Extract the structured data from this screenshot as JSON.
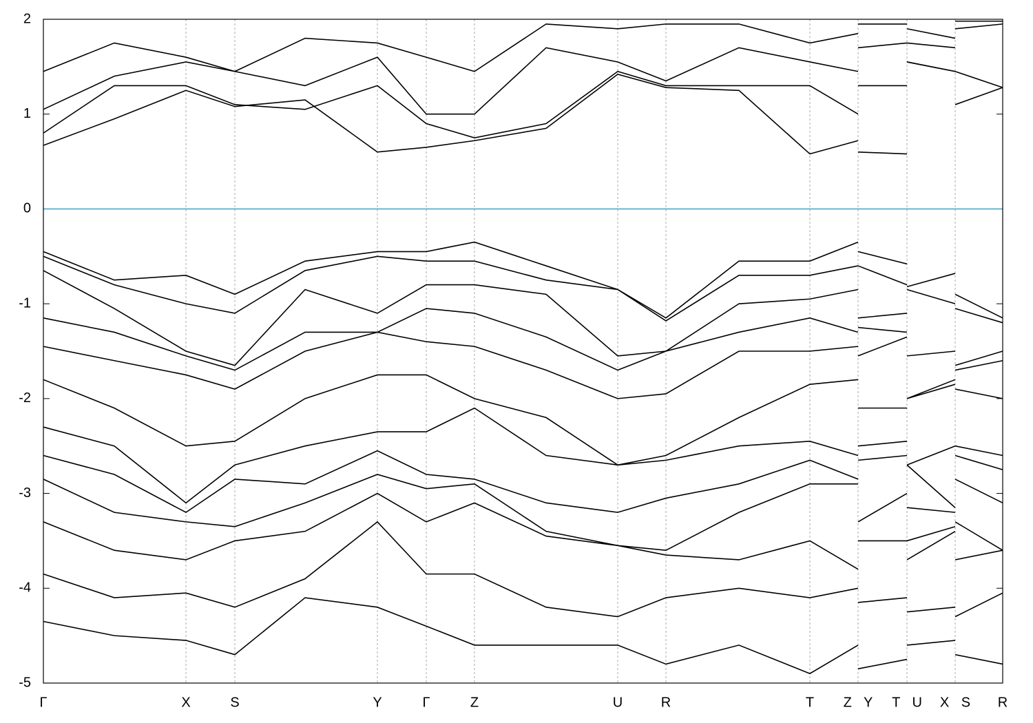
{
  "chart_data": {
    "type": "line",
    "color": "#000000",
    "fermi_level": 0,
    "fermi_color": "#4aa8c8",
    "grid": true,
    "xlim": [
      0,
      13.93
    ],
    "ylim": [
      -5,
      2
    ],
    "yticks": [
      -5,
      -4,
      -3,
      -2,
      -1,
      0,
      1,
      2
    ],
    "xticks": [
      {
        "value": 0,
        "label": "Γ"
      },
      {
        "value": 2.07,
        "label": "X"
      },
      {
        "value": 2.78,
        "label": "S"
      },
      {
        "value": 4.85,
        "label": "Y"
      },
      {
        "value": 5.56,
        "label": "Γ"
      },
      {
        "value": 6.26,
        "label": "Z"
      },
      {
        "value": 8.34,
        "label": "U"
      },
      {
        "value": 9.04,
        "label": "R"
      },
      {
        "value": 11.13,
        "label": "T"
      },
      {
        "value": 11.83,
        "label": "Z Y"
      },
      {
        "value": 12.54,
        "label": "T U"
      },
      {
        "value": 13.24,
        "label": "X S"
      },
      {
        "value": 13.93,
        "label": "R"
      }
    ],
    "x": [
      0,
      1.03,
      2.07,
      2.78,
      3.8,
      4.85,
      5.56,
      6.26,
      7.3,
      8.34,
      9.04,
      10.1,
      11.13,
      11.83,
      11.83,
      11.83,
      12.54,
      12.54,
      12.54,
      13.24,
      13.24,
      13.24,
      13.93
    ],
    "series": [
      {
        "values": [
          0.67,
          0.95,
          1.25,
          1.08,
          1.15,
          0.6,
          0.65,
          0.72,
          0.85,
          1.42,
          1.28,
          1.25,
          0.58,
          0.72,
          null,
          0.6,
          0.58,
          null,
          1.55,
          1.45,
          null,
          1.1,
          1.28
        ]
      },
      {
        "values": [
          0.8,
          1.3,
          1.3,
          1.1,
          1.05,
          1.3,
          0.9,
          0.75,
          0.9,
          1.45,
          1.3,
          1.3,
          1.3,
          1.0,
          null,
          1.3,
          1.3,
          null,
          1.55,
          1.45,
          null,
          1.45,
          1.28
        ]
      },
      {
        "values": [
          1.05,
          1.4,
          1.55,
          1.45,
          1.3,
          1.6,
          1.0,
          1.0,
          1.7,
          1.55,
          1.35,
          1.7,
          1.55,
          1.45,
          null,
          1.7,
          1.75,
          null,
          1.75,
          1.7,
          null,
          1.9,
          1.95
        ]
      },
      {
        "values": [
          1.45,
          1.75,
          1.6,
          1.45,
          1.8,
          1.75,
          1.6,
          1.45,
          1.95,
          1.9,
          1.95,
          1.95,
          1.75,
          1.85,
          null,
          1.95,
          1.95,
          null,
          1.9,
          1.8,
          null,
          1.98,
          1.98
        ]
      },
      {
        "values": [
          -0.45,
          -0.75,
          -0.7,
          -0.9,
          -0.55,
          -0.45,
          -0.45,
          -0.35,
          -0.6,
          -0.85,
          -1.15,
          -0.55,
          -0.55,
          -0.35,
          null,
          -0.45,
          -0.58,
          null,
          -0.82,
          -0.68,
          null,
          -0.9,
          -1.15
        ]
      },
      {
        "values": [
          -0.5,
          -0.8,
          -1.0,
          -1.1,
          -0.65,
          -0.5,
          -0.55,
          -0.55,
          -0.75,
          -0.85,
          -1.18,
          -0.7,
          -0.7,
          -0.6,
          null,
          -0.6,
          -0.8,
          null,
          -0.85,
          -1.0,
          null,
          -1.05,
          -1.2
        ]
      },
      {
        "values": [
          -0.65,
          -1.05,
          -1.5,
          -1.65,
          -0.85,
          -1.1,
          -0.8,
          -0.8,
          -0.9,
          -1.55,
          -1.5,
          -1.0,
          -0.95,
          -0.85,
          null,
          -1.15,
          -1.1,
          null,
          -1.55,
          -1.5,
          null,
          -1.65,
          -1.5
        ]
      },
      {
        "values": [
          -1.15,
          -1.3,
          -1.55,
          -1.7,
          -1.3,
          -1.3,
          -1.05,
          -1.1,
          -1.35,
          -1.7,
          -1.5,
          -1.3,
          -1.15,
          -1.3,
          null,
          -1.25,
          -1.3,
          null,
          -2.0,
          -1.8,
          null,
          -1.7,
          -1.6
        ]
      },
      {
        "values": [
          -1.45,
          -1.6,
          -1.75,
          -1.9,
          -1.5,
          -1.3,
          -1.4,
          -1.45,
          -1.7,
          -2.0,
          -1.95,
          -1.5,
          -1.5,
          -1.45,
          null,
          -1.55,
          -1.35,
          null,
          -2.0,
          -1.85,
          null,
          -1.9,
          -2.0
        ]
      },
      {
        "values": [
          -1.8,
          -2.1,
          -2.5,
          -2.45,
          -2.0,
          -1.75,
          -1.75,
          -2.0,
          -2.2,
          -2.7,
          -2.6,
          -2.2,
          -1.85,
          -1.8,
          null,
          -2.1,
          -2.1,
          null,
          -2.7,
          -2.5,
          null,
          -2.5,
          -2.6
        ]
      },
      {
        "values": [
          -2.3,
          -2.5,
          -3.1,
          -2.7,
          -2.5,
          -2.35,
          -2.35,
          -2.1,
          -2.6,
          -2.7,
          -2.65,
          -2.5,
          -2.45,
          -2.6,
          null,
          -2.5,
          -2.45,
          null,
          -2.7,
          -3.15,
          null,
          -2.6,
          -2.75
        ]
      },
      {
        "values": [
          -2.6,
          -2.8,
          -3.2,
          -2.85,
          -2.9,
          -2.55,
          -2.8,
          -2.85,
          -3.1,
          -3.2,
          -3.05,
          -2.9,
          -2.65,
          -2.85,
          null,
          -2.65,
          -2.6,
          null,
          -3.15,
          -3.2,
          null,
          -2.85,
          -3.1
        ]
      },
      {
        "values": [
          -2.85,
          -3.2,
          -3.3,
          -3.35,
          -3.1,
          -2.8,
          -2.95,
          -2.9,
          -3.4,
          -3.55,
          -3.6,
          -3.2,
          -2.9,
          -2.9,
          null,
          -3.3,
          -3.0,
          null,
          -3.5,
          -3.35,
          null,
          -3.3,
          -3.6
        ]
      },
      {
        "values": [
          -3.3,
          -3.6,
          -3.7,
          -3.5,
          -3.4,
          -3.0,
          -3.3,
          -3.1,
          -3.45,
          -3.55,
          -3.65,
          -3.7,
          -3.5,
          -3.8,
          null,
          -3.5,
          -3.5,
          null,
          -3.7,
          -3.4,
          null,
          -3.7,
          -3.6
        ]
      },
      {
        "values": [
          -3.85,
          -4.1,
          -4.05,
          -4.2,
          -3.9,
          -3.3,
          -3.85,
          -3.85,
          -4.2,
          -4.3,
          -4.1,
          -4.0,
          -4.1,
          -4.0,
          null,
          -4.15,
          -4.1,
          null,
          -4.25,
          -4.2,
          null,
          -4.3,
          -4.05
        ]
      },
      {
        "values": [
          -4.35,
          -4.5,
          -4.55,
          -4.7,
          -4.1,
          -4.2,
          -4.4,
          -4.6,
          -4.6,
          -4.6,
          -4.8,
          -4.6,
          -4.9,
          -4.6,
          null,
          -4.85,
          -4.75,
          null,
          -4.6,
          -4.55,
          null,
          -4.7,
          -4.8
        ]
      }
    ]
  }
}
